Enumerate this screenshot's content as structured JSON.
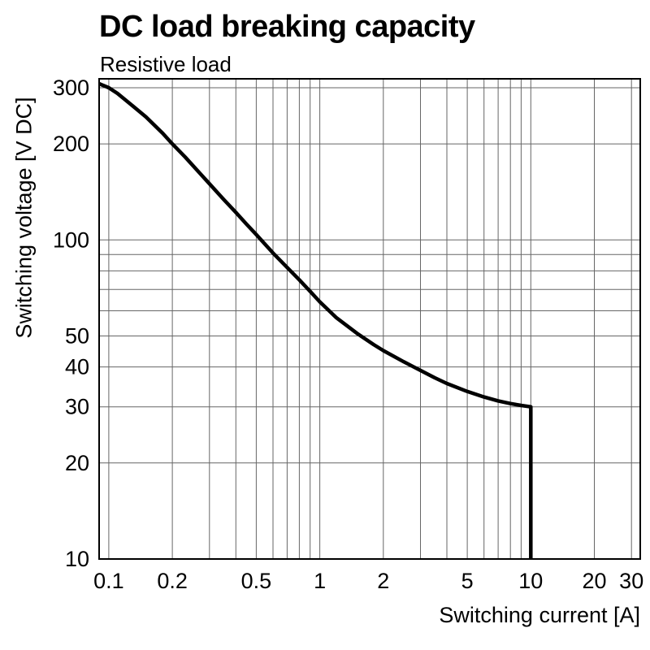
{
  "page": {
    "background": "#ffffff"
  },
  "chart_data": {
    "type": "line",
    "title": "DC load breaking capacity",
    "subtitle": "Resistive load",
    "xlabel": "Switching current [A]",
    "ylabel": "Switching voltage [V DC]",
    "x_scale": "log",
    "y_scale": "log",
    "xlim": [
      0.09,
      33
    ],
    "ylim": [
      10,
      320
    ],
    "grid": true,
    "legend": false,
    "colors": {
      "curve": "#000000",
      "grid": "#666666",
      "axis": "#000000",
      "text": "#000000"
    },
    "xticks": [
      [
        0.1,
        "0.1"
      ],
      [
        0.2,
        "0.2"
      ],
      [
        0.5,
        "0.5"
      ],
      [
        1,
        "1"
      ],
      [
        2,
        "2"
      ],
      [
        5,
        "5"
      ],
      [
        10,
        "10"
      ],
      [
        20,
        "20"
      ],
      [
        30,
        "30"
      ]
    ],
    "yticks": [
      [
        10,
        "10"
      ],
      [
        20,
        "20"
      ],
      [
        30,
        "30"
      ],
      [
        40,
        "40"
      ],
      [
        50,
        "50"
      ],
      [
        100,
        "100"
      ],
      [
        200,
        "200"
      ],
      [
        300,
        "300"
      ]
    ],
    "xgrid": [
      0.1,
      0.2,
      0.3,
      0.4,
      0.5,
      0.6,
      0.7,
      0.8,
      0.9,
      1,
      2,
      3,
      4,
      5,
      6,
      7,
      8,
      9,
      10,
      20,
      30
    ],
    "ygrid": [
      20,
      30,
      40,
      50,
      60,
      70,
      80,
      90,
      100,
      200,
      300
    ],
    "series": [
      {
        "name": "Resistive load",
        "points": [
          [
            0.09,
            309
          ],
          [
            0.1,
            300
          ],
          [
            0.11,
            288
          ],
          [
            0.13,
            263
          ],
          [
            0.15,
            243
          ],
          [
            0.18,
            216
          ],
          [
            0.2,
            200
          ],
          [
            0.23,
            182
          ],
          [
            0.27,
            162
          ],
          [
            0.3,
            150
          ],
          [
            0.35,
            134
          ],
          [
            0.4,
            122
          ],
          [
            0.45,
            112
          ],
          [
            0.5,
            104
          ],
          [
            0.6,
            91
          ],
          [
            0.7,
            82
          ],
          [
            0.8,
            75
          ],
          [
            0.9,
            69
          ],
          [
            1,
            64
          ],
          [
            1.2,
            57
          ],
          [
            1.5,
            51
          ],
          [
            1.8,
            47
          ],
          [
            2,
            45
          ],
          [
            2.5,
            41.5
          ],
          [
            3,
            39
          ],
          [
            3.5,
            37
          ],
          [
            4,
            35.5
          ],
          [
            5,
            33.5
          ],
          [
            6,
            32.2
          ],
          [
            7,
            31.3
          ],
          [
            8,
            30.7
          ],
          [
            9,
            30.3
          ],
          [
            10,
            30
          ],
          [
            10,
            10
          ]
        ]
      }
    ]
  }
}
